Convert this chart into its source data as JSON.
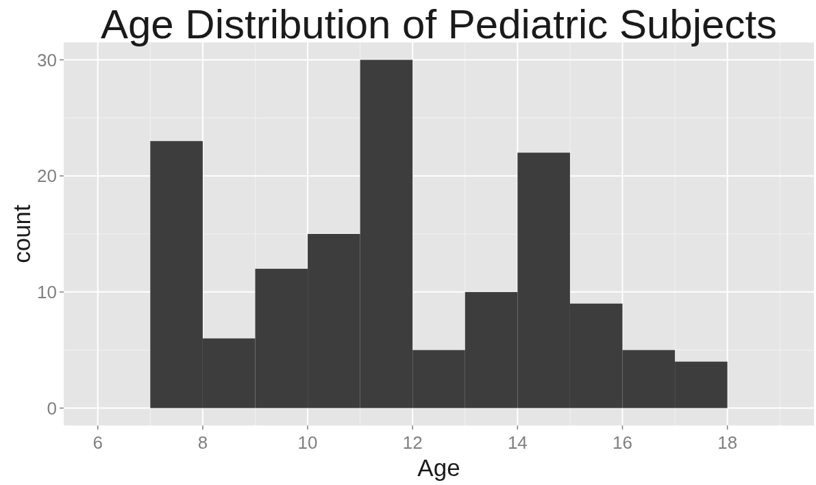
{
  "chart_data": {
    "type": "histogram",
    "title": "Age Distribution of Pediatric Subjects",
    "xlabel": "Age",
    "ylabel": "count",
    "bins": [
      7,
      8,
      9,
      10,
      11,
      12,
      13,
      14,
      15,
      16,
      17,
      18
    ],
    "values": [
      23,
      6,
      12,
      15,
      30,
      5,
      10,
      22,
      9,
      5,
      4
    ],
    "color": "#3d3d3d",
    "xlim": [
      5.35,
      19.65
    ],
    "xticks": [
      6,
      8,
      10,
      12,
      14,
      16,
      18
    ],
    "ylim": [
      -1.5,
      31.5
    ],
    "yticks": [
      0,
      10,
      20,
      30
    ],
    "grid": true
  }
}
